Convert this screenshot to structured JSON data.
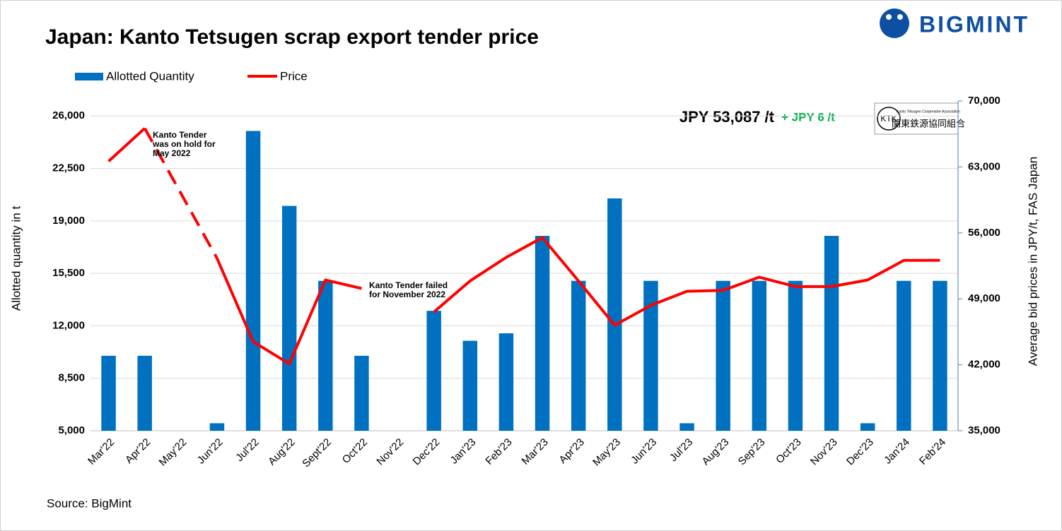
{
  "chart_data": {
    "type": "combo",
    "title": "Japan: Kanto Tetsugen scrap export tender price",
    "logo": "BIGMINT",
    "ktk_logo": {
      "abbr": "KTK",
      "name": "Kanto Tetsugen Cooperative Association",
      "name_ja": "関東鉄源協同組合"
    },
    "callout": {
      "price": "JPY 53,087 /t",
      "change": "+ JPY 6 /t"
    },
    "source": "Source: BigMint",
    "y_label": "Allotted quantity in t",
    "y2_label": "Average bid prices in JPY/t, FAS Japan",
    "categories": [
      "Mar'22",
      "Apr'22",
      "May'22",
      "Jun'22",
      "Jul'22",
      "Aug'22",
      "Sept'22",
      "Oct'22",
      "Nov'22",
      "Dec'22",
      "Jan'23",
      "Feb'23",
      "Mar'23",
      "Apr'23",
      "May'23",
      "Jun'23",
      "Jul'23",
      "Aug'23",
      "Sep'23",
      "Oct'23",
      "Nov'23",
      "Dec'23",
      "Jan'24",
      "Feb'24"
    ],
    "series": [
      {
        "name": "Allotted Quantity",
        "type": "bar",
        "color": "#0070c0",
        "values": [
          10000,
          10000,
          null,
          5500,
          25000,
          20000,
          15000,
          10000,
          null,
          13000,
          11000,
          11500,
          18000,
          15000,
          20500,
          15000,
          5500,
          15000,
          15000,
          15000,
          18000,
          5500,
          15000,
          15000
        ]
      },
      {
        "name": "Price",
        "type": "line",
        "axis": "y2",
        "color": "#ff0000",
        "values": [
          63600,
          67100,
          null,
          53300,
          44450,
          42100,
          51000,
          50100,
          null,
          47600,
          50900,
          53400,
          55500,
          50900,
          46200,
          48300,
          49800,
          49900,
          51300,
          50300,
          50300,
          51000,
          53081,
          53087
        ]
      }
    ],
    "ylim": [
      5000,
      27000
    ],
    "yticks": [
      {
        "value": 5000,
        "label": "5,000"
      },
      {
        "value": 8500,
        "label": "8,500"
      },
      {
        "value": 12000,
        "label": "12,000"
      },
      {
        "value": 15500,
        "label": "15,500"
      },
      {
        "value": 19000,
        "label": "19,000"
      },
      {
        "value": 22500,
        "label": "22,500"
      },
      {
        "value": 26000,
        "label": "26,000"
      }
    ],
    "y2lim": [
      35000,
      70000
    ],
    "y2ticks": [
      {
        "value": 35000,
        "label": "35,000"
      },
      {
        "value": 42000,
        "label": "42,000"
      },
      {
        "value": 49000,
        "label": "49,000"
      },
      {
        "value": 56000,
        "label": "56,000"
      },
      {
        "value": 63000,
        "label": "63,000"
      },
      {
        "value": 70000,
        "label": "70,000"
      }
    ],
    "grid": true,
    "annotations": [
      {
        "lines": [
          "Kanto Tender",
          "was on hold for",
          "May 2022"
        ]
      },
      {
        "lines": [
          "Kanto Tender failed",
          "for November 2022"
        ]
      }
    ]
  }
}
